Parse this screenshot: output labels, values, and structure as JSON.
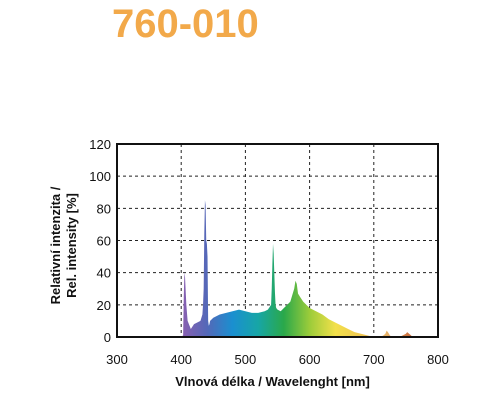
{
  "product_code": "760-010",
  "chart_data": {
    "type": "area",
    "title": "",
    "xlabel": "Vlnová délka / Wavelenght [nm]",
    "ylabel_line1": "Relativní intenzita /",
    "ylabel_line2": "Rel. intensity [%]",
    "xlim": [
      300,
      800
    ],
    "ylim": [
      0,
      120
    ],
    "x_ticks": [
      300,
      400,
      500,
      600,
      700,
      800
    ],
    "y_ticks": [
      0,
      20,
      40,
      60,
      80,
      100,
      120
    ],
    "grid": "dashed",
    "colors": {
      "spectrum": [
        "#8b5fb0",
        "#5468b8",
        "#1a8fd0",
        "#17a6a6",
        "#2aa84a",
        "#9ccc3a",
        "#f2e04a",
        "#f0c850",
        "#e7b268",
        "#c8683a"
      ],
      "product_code": "#f2a94a"
    },
    "spectrum": {
      "x": [
        400,
        403,
        404,
        405,
        406,
        408,
        410,
        415,
        420,
        425,
        430,
        433,
        434,
        435,
        436,
        437,
        438,
        439,
        440,
        441,
        442,
        443,
        444,
        445,
        450,
        460,
        470,
        480,
        490,
        500,
        510,
        520,
        530,
        535,
        540,
        541,
        542,
        543,
        544,
        545,
        546,
        547,
        548,
        550,
        555,
        560,
        565,
        570,
        573,
        576,
        578,
        580,
        582,
        585,
        590,
        600,
        610,
        620,
        630,
        640,
        650,
        660,
        670,
        680,
        690,
        700,
        710,
        715,
        718,
        720,
        722,
        725,
        728,
        730,
        740,
        745,
        750,
        752,
        755,
        758,
        760,
        765,
        800
      ],
      "y": [
        0,
        1,
        25,
        40,
        37,
        20,
        10,
        5,
        8,
        9,
        10,
        14,
        20,
        30,
        65,
        85,
        82,
        60,
        58,
        50,
        10,
        7,
        8,
        10,
        12,
        14,
        15,
        16,
        17,
        16,
        15,
        15,
        16,
        17,
        20,
        30,
        45,
        58,
        52,
        40,
        28,
        20,
        18,
        17,
        16,
        18,
        20,
        22,
        26,
        30,
        35,
        33,
        27,
        25,
        22,
        18,
        16,
        14,
        11,
        9,
        7,
        5,
        3,
        2,
        1,
        0,
        0,
        1,
        2,
        4,
        3,
        1,
        0,
        0,
        0,
        1,
        2,
        3,
        2,
        1,
        0,
        0,
        0
      ]
    }
  }
}
